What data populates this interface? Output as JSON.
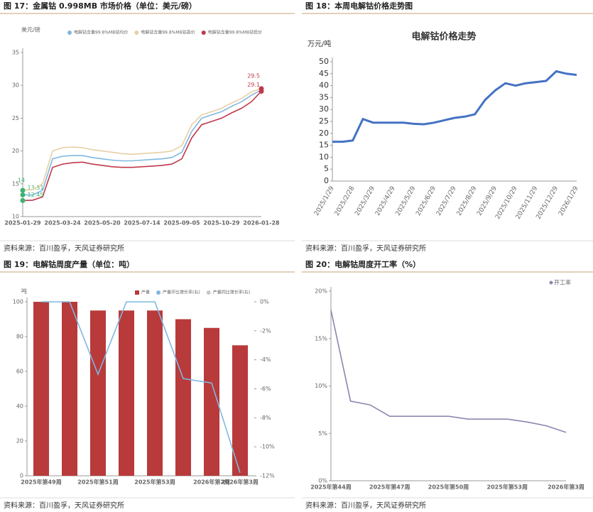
{
  "chart_data": [
    {
      "type": "line",
      "title": "图 17：金属钴 0.998MB 市场价格（单位：美元/磅）",
      "y_label": "美元/磅",
      "categories": [
        "2025-01-29",
        null,
        null,
        null,
        "2025-03-24",
        null,
        null,
        null,
        "2025-05-20",
        null,
        null,
        null,
        "2025-07-14",
        null,
        null,
        null,
        "2025-09-05",
        null,
        null,
        null,
        "2025-10-29",
        null,
        null,
        null,
        "2026-01-28"
      ],
      "series": [
        {
          "name": "电解钴含量99.8%MB钴均价",
          "color": "#7fb8e0",
          "values": [
            13.31,
            13.3,
            14,
            18.8,
            19.2,
            19.3,
            19.3,
            19,
            18.8,
            18.6,
            18.5,
            18.5,
            18.6,
            18.7,
            18.8,
            19,
            19.8,
            23,
            25,
            25.5,
            26,
            26.8,
            27.5,
            28.5,
            29.3
          ]
        },
        {
          "name": "电解钴含量99.8%MB钴高价",
          "color": "#e8cfa4",
          "values": [
            14,
            14.1,
            15,
            20,
            20.5,
            20.6,
            20.5,
            20.2,
            20,
            19.8,
            19.6,
            19.5,
            19.6,
            19.7,
            19.8,
            20,
            20.8,
            24,
            25.5,
            26,
            26.5,
            27.3,
            28,
            29,
            29.5
          ]
        },
        {
          "name": "电解钴含量99.8%MB钴低价",
          "color": "#c0394a",
          "values": [
            12.45,
            12.5,
            13,
            17.5,
            18,
            18.2,
            18.3,
            18,
            17.8,
            17.6,
            17.5,
            17.5,
            17.6,
            17.7,
            17.8,
            18,
            18.8,
            22,
            24,
            24.5,
            25,
            25.8,
            26.5,
            27.5,
            29.1
          ]
        }
      ],
      "ylim": [
        10,
        35
      ],
      "yticks": [
        10,
        15,
        20,
        25,
        30,
        35
      ],
      "grid": false,
      "legend": "top",
      "source": "资料来源：百川盈孚，天风证券研究所"
    },
    {
      "type": "line",
      "title": "图 18：本周电解钴价格走势图",
      "chart_title": "电解钴价格走势",
      "y_label": "万元/吨",
      "categories": [
        "2025/1/29",
        null,
        "2025/2/28",
        null,
        "2025/3/29",
        null,
        "2025/4/29",
        null,
        "2025/5/29",
        null,
        "2025/6/29",
        null,
        "2025/7/29",
        null,
        "2025/8/29",
        null,
        "2025/9/29",
        null,
        "2025/10/29",
        null,
        "2025/11/29",
        null,
        "2025/12/29",
        null,
        "2026/1/29"
      ],
      "series": [
        {
          "color": "#4472c4",
          "values": [
            16.5,
            16.5,
            17,
            26,
            24.5,
            24.5,
            24.5,
            24.5,
            24,
            23.8,
            24.5,
            25.5,
            26.5,
            27,
            28,
            34,
            38,
            41,
            40,
            41,
            41.5,
            42,
            46,
            45,
            44.5
          ]
        }
      ],
      "ylim": [
        0,
        50
      ],
      "yticks": [
        0,
        5,
        10,
        15,
        20,
        25,
        30,
        35,
        40,
        45,
        50
      ],
      "grid": false,
      "source": "资料来源：百川盈孚，天风证券研究所"
    },
    {
      "type": "bar",
      "title": "图 19：电解钴周度产量（单位：吨）",
      "y_label": "吨",
      "categories": [
        "2025年第49周",
        null,
        "2025年第51周",
        null,
        "2025年第53周",
        null,
        "2026年第2周",
        "2026年第3周"
      ],
      "series": [
        {
          "name": "产量",
          "color": "#b83a3a",
          "values": [
            100,
            100,
            95,
            95,
            95,
            90,
            85,
            75
          ]
        },
        {
          "name": "产量环比增长率(右)",
          "color": "#7fb8e0",
          "axis": "y2",
          "values": [
            0,
            0,
            -5,
            0,
            0,
            -5.3,
            -5.6,
            -11.8
          ]
        },
        {
          "name": "产量同比增长率(右)",
          "color": "#c8c8c8",
          "axis": "y2",
          "values": [
            null,
            null,
            null,
            null,
            null,
            null,
            null,
            null
          ]
        }
      ],
      "ylim": [
        0,
        100
      ],
      "yticks": [
        0,
        20,
        40,
        60,
        80,
        100
      ],
      "y2lim": [
        -12,
        0
      ],
      "y2ticks": [
        {
          "value": 0,
          "label": "0%"
        },
        {
          "value": -2,
          "label": "-2%"
        },
        {
          "value": -4,
          "label": "-4%"
        },
        {
          "value": -6,
          "label": "-6%"
        },
        {
          "value": -8,
          "label": "-8%"
        },
        {
          "value": -10,
          "label": "-10%"
        },
        {
          "value": -12,
          "label": "-12%"
        }
      ],
      "grid": false,
      "legend": "top",
      "source": "资料来源：百川盈孚，天风证券研究所"
    },
    {
      "type": "line",
      "title": "图 20：电解钴周度开工率（%）",
      "categories": [
        "2025年第44周",
        null,
        null,
        "2025年第47周",
        null,
        null,
        "2025年第50周",
        null,
        null,
        "2025年第53周",
        null,
        null,
        "2026年第3周"
      ],
      "series": [
        {
          "name": "开工率",
          "color": "#8a87b0",
          "values": [
            18,
            8.4,
            8,
            6.8,
            6.8,
            6.8,
            6.8,
            6.5,
            6.5,
            6.5,
            6.2,
            5.8,
            5.1
          ]
        }
      ],
      "ylim": [
        0,
        20
      ],
      "yticks": [
        {
          "value": 0,
          "label": "0%"
        },
        {
          "value": 5,
          "label": "5%"
        },
        {
          "value": 10,
          "label": "10%"
        },
        {
          "value": 15,
          "label": "15%"
        },
        {
          "value": 20,
          "label": "20%"
        }
      ],
      "grid": false,
      "legend": "top-right",
      "source": "资料来源：百川盈孚，天风证券研究所"
    }
  ]
}
